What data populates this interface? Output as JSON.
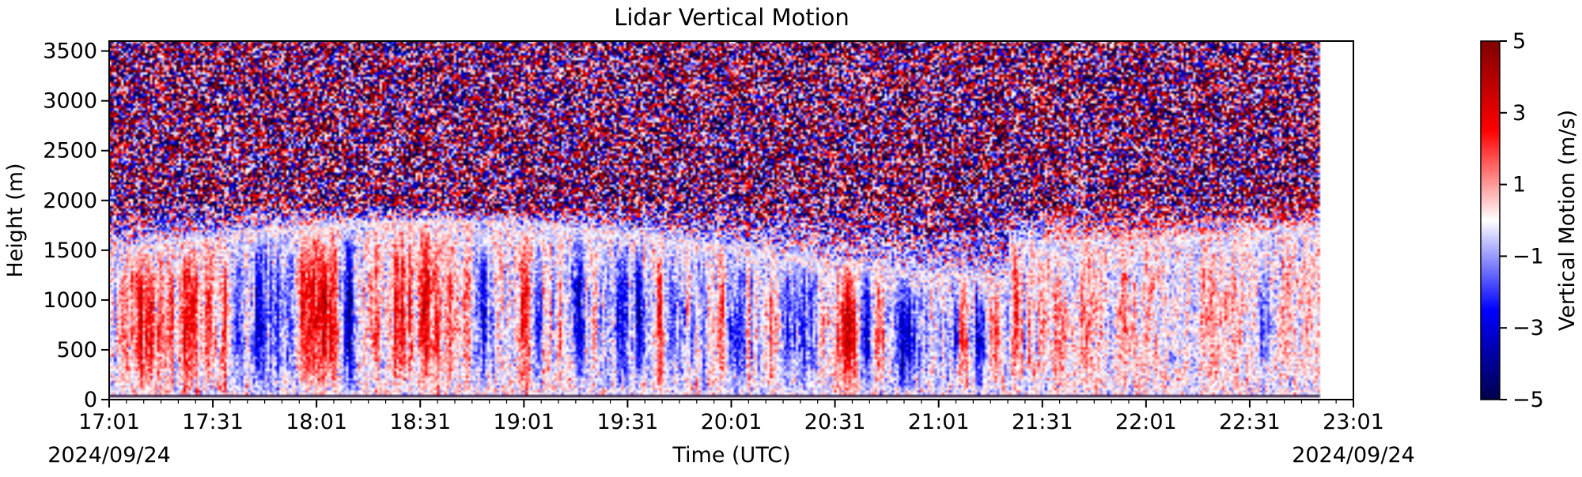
{
  "chart_data": {
    "type": "heatmap",
    "title": "Lidar Vertical Motion",
    "xlabel": "Time (UTC)",
    "ylabel": "Height (m)",
    "x_ticks": [
      "17:01",
      "17:31",
      "18:01",
      "18:31",
      "19:01",
      "19:31",
      "20:01",
      "20:31",
      "21:01",
      "21:31",
      "22:01",
      "22:31",
      "23:01"
    ],
    "x_range_minutes": [
      0,
      360
    ],
    "data_end_minutes": 350,
    "date_left": "2024/09/24",
    "date_right": "2024/09/24",
    "y_ticks": [
      0,
      500,
      1000,
      1500,
      2000,
      2500,
      3000,
      3500
    ],
    "ylim": [
      0,
      3600
    ],
    "colorbar": {
      "label": "Vertical Motion (m/s)",
      "ticks": [
        "5",
        "3",
        "1",
        "−1",
        "−3",
        "−5"
      ],
      "tick_values": [
        5,
        3,
        1,
        -1,
        -3,
        -5
      ],
      "range": [
        -5,
        5
      ],
      "colormap": "seismic",
      "color_low": "#00004c",
      "color_mid": "#ffffff",
      "color_high": "#7f0000"
    },
    "field_description_values": {
      "noise_above_m": 2000,
      "bottom_band_height_m": 60
    }
  }
}
